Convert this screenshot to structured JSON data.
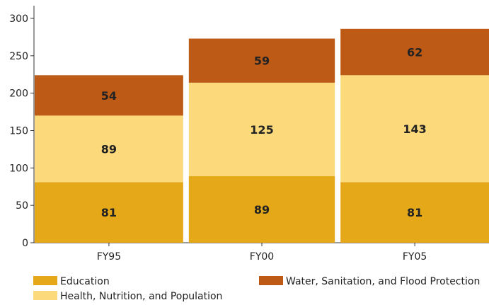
{
  "chart_data": {
    "type": "bar",
    "stacked": true,
    "categories": [
      "FY95",
      "FY00",
      "FY05"
    ],
    "series": [
      {
        "name": "Education",
        "color": "#E5A819",
        "values": [
          81,
          89,
          81
        ]
      },
      {
        "name": "Health, Nutrition, and Population",
        "color": "#FCD97B",
        "values": [
          89,
          125,
          143
        ]
      },
      {
        "name": "Water, Sanitation, and Flood Protection",
        "color": "#BD5A16",
        "values": [
          54,
          59,
          62
        ]
      }
    ],
    "title": "",
    "xlabel": "",
    "ylabel": "",
    "ylim": [
      0,
      300
    ],
    "yticks": [
      0,
      50,
      100,
      150,
      200,
      250,
      300
    ],
    "grid": false,
    "legend_position": "bottom",
    "data_labels": true
  }
}
